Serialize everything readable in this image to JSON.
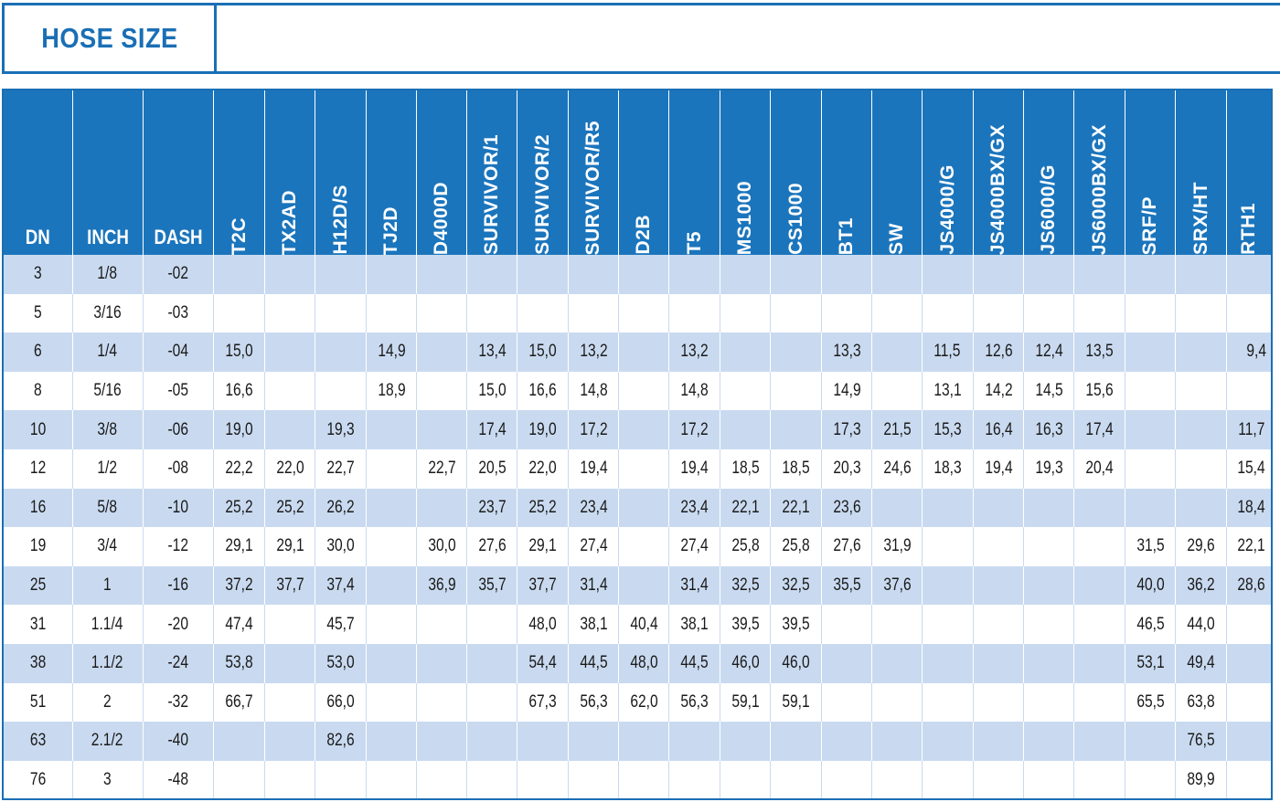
{
  "title": "HOSE SIZE",
  "columns": [
    "DN",
    "INCH",
    "DASH",
    "T2C",
    "TX2AD",
    "H12D/S",
    "TJ2D",
    "D4000D",
    "SURVIVOR/1",
    "SURVIVOR/2",
    "SURVIVOR/R5",
    "D2B",
    "T5",
    "MS1000",
    "CS1000",
    "BT1",
    "SW",
    "JS4000/G",
    "JS4000BX/GX",
    "JS6000/G",
    "JS6000BX/GX",
    "SRF/P",
    "SRX/HT",
    "RTH1"
  ],
  "rows": [
    [
      "3",
      "1/8",
      "-02",
      "",
      "",
      "",
      "",
      "",
      "",
      "",
      "",
      "",
      "",
      "",
      "",
      "",
      "",
      "",
      "",
      "",
      "",
      "",
      "",
      ""
    ],
    [
      "5",
      "3/16",
      "-03",
      "",
      "",
      "",
      "",
      "",
      "",
      "",
      "",
      "",
      "",
      "",
      "",
      "",
      "",
      "",
      "",
      "",
      "",
      "",
      "",
      ""
    ],
    [
      "6",
      "1/4",
      "-04",
      "15,0",
      "",
      "",
      "14,9",
      "",
      "13,4",
      "15,0",
      "13,2",
      "",
      "13,2",
      "",
      "",
      "13,3",
      "",
      "11,5",
      "12,6",
      "12,4",
      "13,5",
      "",
      "",
      "9,4"
    ],
    [
      "8",
      "5/16",
      "-05",
      "16,6",
      "",
      "",
      "18,9",
      "",
      "15,0",
      "16,6",
      "14,8",
      "",
      "14,8",
      "",
      "",
      "14,9",
      "",
      "13,1",
      "14,2",
      "14,5",
      "15,6",
      "",
      "",
      ""
    ],
    [
      "10",
      "3/8",
      "-06",
      "19,0",
      "",
      "19,3",
      "",
      "",
      "17,4",
      "19,0",
      "17,2",
      "",
      "17,2",
      "",
      "",
      "17,3",
      "21,5",
      "15,3",
      "16,4",
      "16,3",
      "17,4",
      "",
      "",
      "11,7"
    ],
    [
      "12",
      "1/2",
      "-08",
      "22,2",
      "22,0",
      "22,7",
      "",
      "22,7",
      "20,5",
      "22,0",
      "19,4",
      "",
      "19,4",
      "18,5",
      "18,5",
      "20,3",
      "24,6",
      "18,3",
      "19,4",
      "19,3",
      "20,4",
      "",
      "",
      "15,4"
    ],
    [
      "16",
      "5/8",
      "-10",
      "25,2",
      "25,2",
      "26,2",
      "",
      "",
      "23,7",
      "25,2",
      "23,4",
      "",
      "23,4",
      "22,1",
      "22,1",
      "23,6",
      "",
      "",
      "",
      "",
      "",
      "",
      "",
      "18,4"
    ],
    [
      "19",
      "3/4",
      "-12",
      "29,1",
      "29,1",
      "30,0",
      "",
      "30,0",
      "27,6",
      "29,1",
      "27,4",
      "",
      "27,4",
      "25,8",
      "25,8",
      "27,6",
      "31,9",
      "",
      "",
      "",
      "",
      "31,5",
      "29,6",
      "22,1"
    ],
    [
      "25",
      "1",
      "-16",
      "37,2",
      "37,7",
      "37,4",
      "",
      "36,9",
      "35,7",
      "37,7",
      "31,4",
      "",
      "31,4",
      "32,5",
      "32,5",
      "35,5",
      "37,6",
      "",
      "",
      "",
      "",
      "40,0",
      "36,2",
      "28,6"
    ],
    [
      "31",
      "1.1/4",
      "-20",
      "47,4",
      "",
      "45,7",
      "",
      "",
      "",
      "48,0",
      "38,1",
      "40,4",
      "38,1",
      "39,5",
      "39,5",
      "",
      "",
      "",
      "",
      "",
      "",
      "46,5",
      "44,0",
      ""
    ],
    [
      "38",
      "1.1/2",
      "-24",
      "53,8",
      "",
      "53,0",
      "",
      "",
      "",
      "54,4",
      "44,5",
      "48,0",
      "44,5",
      "46,0",
      "46,0",
      "",
      "",
      "",
      "",
      "",
      "",
      "53,1",
      "49,4",
      ""
    ],
    [
      "51",
      "2",
      "-32",
      "66,7",
      "",
      "66,0",
      "",
      "",
      "",
      "67,3",
      "56,3",
      "62,0",
      "56,3",
      "59,1",
      "59,1",
      "",
      "",
      "",
      "",
      "",
      "",
      "65,5",
      "63,8",
      ""
    ],
    [
      "63",
      "2.1/2",
      "-40",
      "",
      "",
      "82,6",
      "",
      "",
      "",
      "",
      "",
      "",
      "",
      "",
      "",
      "",
      "",
      "",
      "",
      "",
      "",
      "",
      "76,5",
      ""
    ],
    [
      "76",
      "3",
      "-48",
      "",
      "",
      "",
      "",
      "",
      "",
      "",
      "",
      "",
      "",
      "",
      "",
      "",
      "",
      "",
      "",
      "",
      "",
      "",
      "89,9",
      ""
    ]
  ],
  "colors": {
    "header_blue": "#1b75bc",
    "stripe": "#c9daf0",
    "border_blue": "#1a6fb5"
  }
}
